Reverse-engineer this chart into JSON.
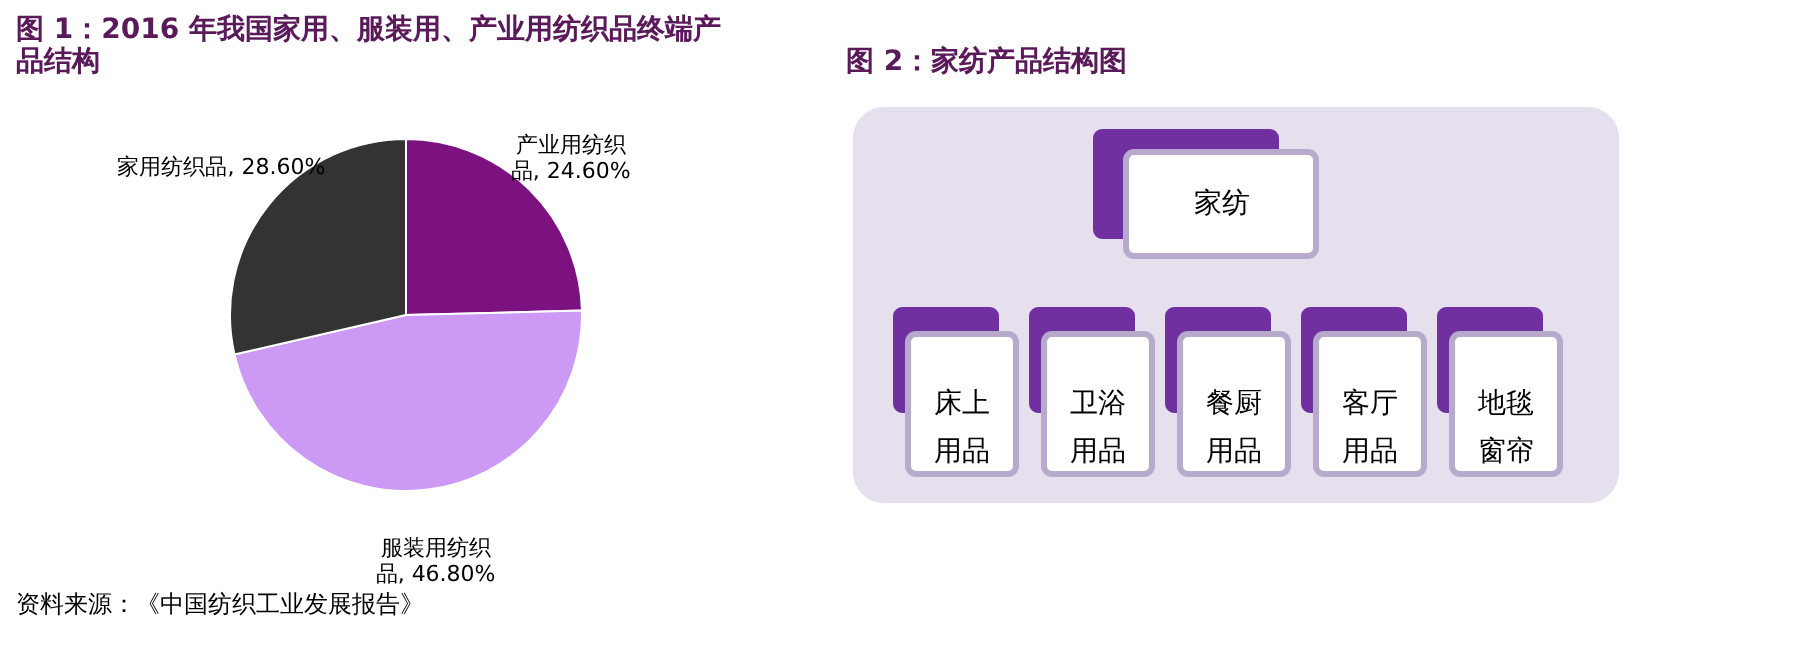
{
  "chart_data": [
    {
      "type": "pie",
      "title": "图 1：2016 年我国家用、服装用、产业用纺织品终端产品结构",
      "categories": [
        "产业用纺织品",
        "服装用纺织品",
        "家用纺织品"
      ],
      "values": [
        24.6,
        46.8,
        28.6
      ],
      "colors": [
        "#7b1280",
        "#cc99f5",
        "#333333"
      ],
      "value_labels": [
        "24.60%",
        "46.80%",
        "28.60%"
      ],
      "annotations": [
        "资料来源：《中国纺织工业发展报告》"
      ]
    },
    {
      "type": "other",
      "title": "图 2：家纺产品结构图",
      "annotations": [
        "家纺",
        "床上用品",
        "卫浴用品",
        "餐厨用品",
        "客厅用品",
        "地毯窗帘"
      ]
    }
  ]
}
